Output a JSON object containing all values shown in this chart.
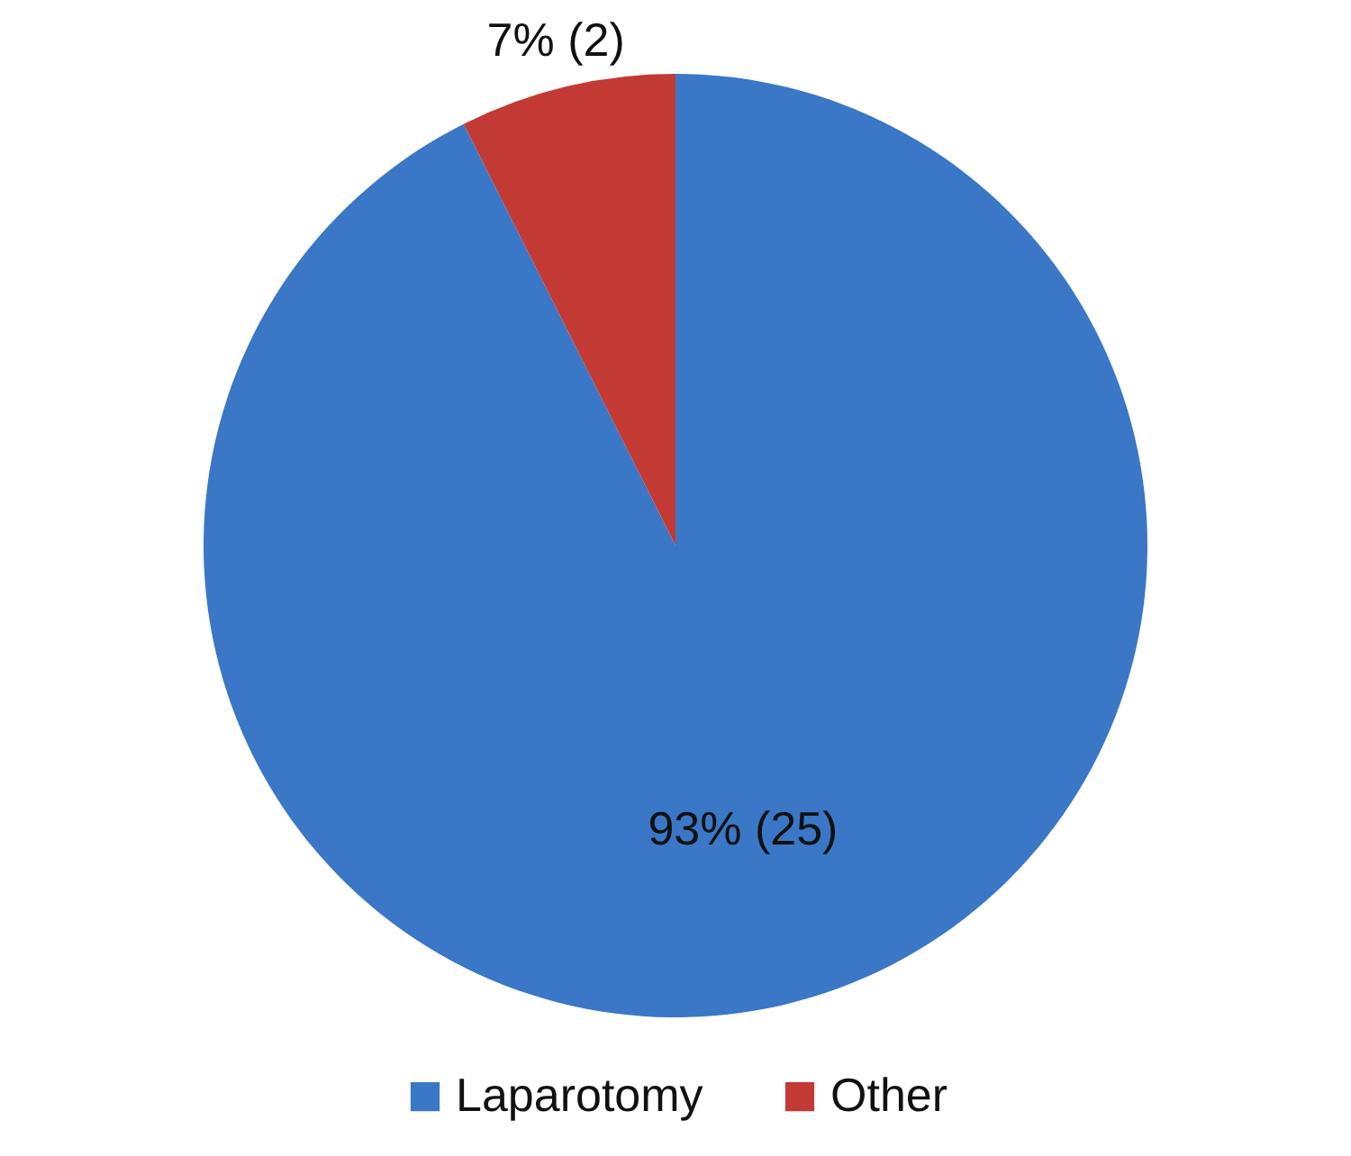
{
  "chart_data": {
    "type": "pie",
    "categories": [
      "Laparotomy",
      "Other"
    ],
    "values": [
      25,
      2
    ],
    "colors": [
      "#3a77c6",
      "#c33a35"
    ],
    "value_labels": [
      "93% (25)",
      "7% (2)"
    ],
    "legend": "bottom"
  }
}
